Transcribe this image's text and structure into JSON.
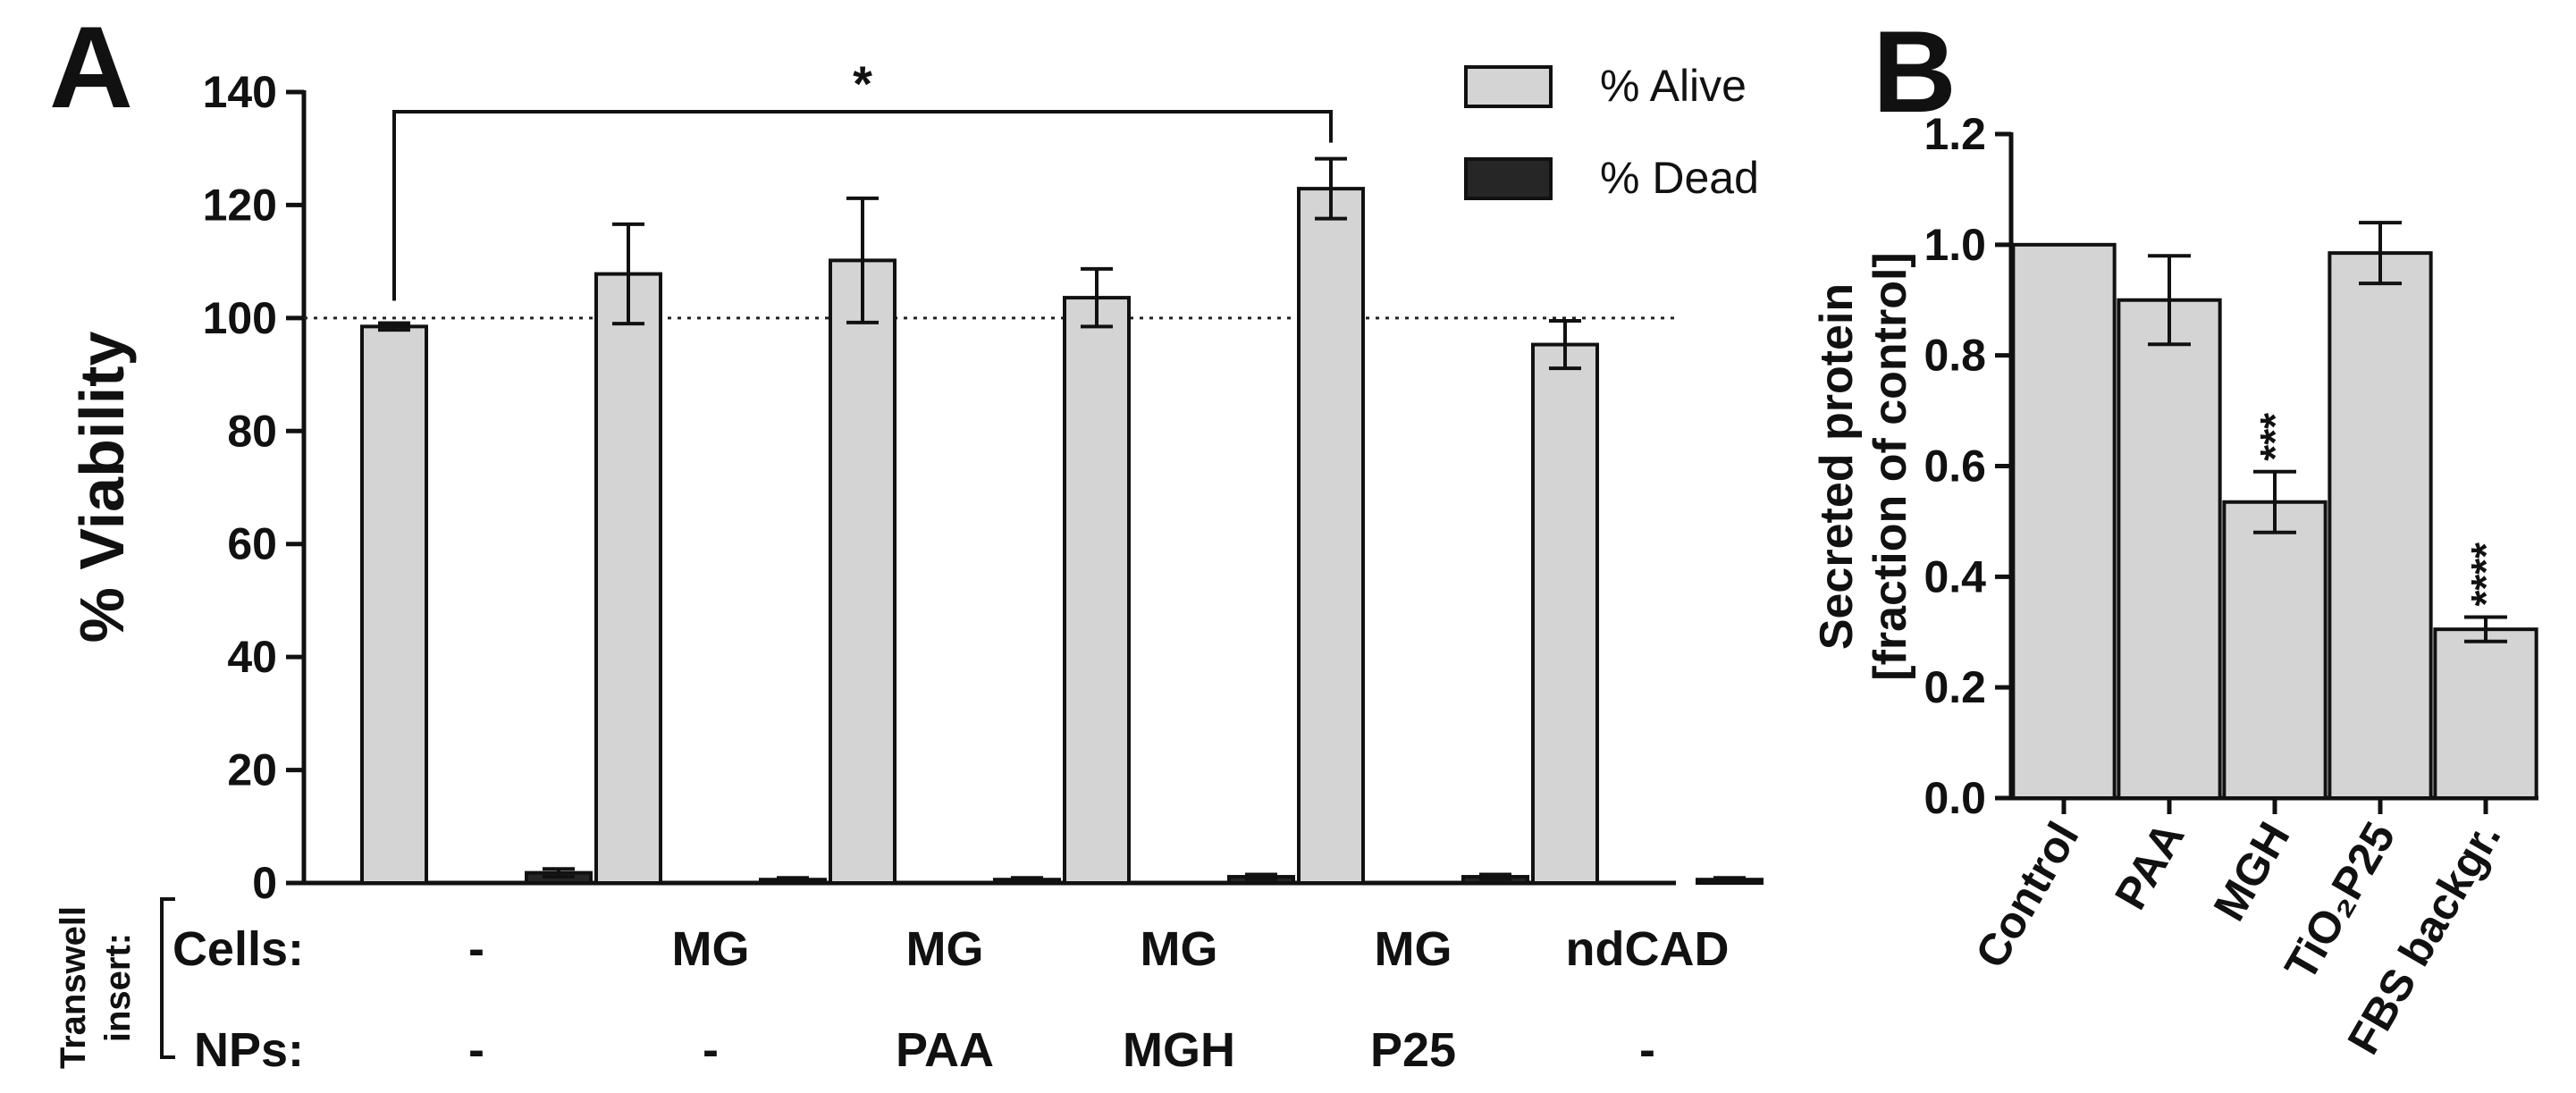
{
  "chart_data": [
    {
      "panel": "A",
      "type": "bar",
      "ylabel": "% Viability",
      "ylim": [
        0,
        140
      ],
      "yticks": [
        "0",
        "20",
        "40",
        "60",
        "80",
        "100",
        "120",
        "140"
      ],
      "reference_line": 100,
      "grid": false,
      "legend_position": "top-right",
      "series": [
        {
          "name": "% Alive",
          "color": "#d4d4d4",
          "values": [
            98.5,
            107.8,
            110.2,
            103.6,
            122.9,
            95.3
          ],
          "errors": [
            0.6,
            8.8,
            11.0,
            5.1,
            5.3,
            4.2
          ]
        },
        {
          "name": "% Dead",
          "color": "#262626",
          "values": [
            1.8,
            0.6,
            0.6,
            1.1,
            1.1,
            0.6
          ],
          "errors": [
            0.7,
            0.3,
            0.3,
            0.4,
            0.4,
            0.3
          ]
        }
      ],
      "table": {
        "side_label": [
          "Transwell",
          "insert:"
        ],
        "rows": [
          {
            "label": "Cells:",
            "values": [
              "-",
              "MG",
              "MG",
              "MG",
              "MG",
              "ndCAD"
            ]
          },
          {
            "label": "NPs:",
            "values": [
              "-",
              "-",
              "PAA",
              "MGH",
              "P25",
              "-"
            ]
          }
        ]
      },
      "significance": {
        "from_group": 0,
        "to_group": 4,
        "label": "*"
      }
    },
    {
      "panel": "B",
      "type": "bar",
      "ylabel": [
        "Secreted protein",
        "[fraction of control]"
      ],
      "ylim": [
        0,
        1.2
      ],
      "yticks": [
        "0.0",
        "0.2",
        "0.4",
        "0.6",
        "0.8",
        "1.0",
        "1.2"
      ],
      "grid": false,
      "categories": [
        "Control",
        "PAA",
        "MGH",
        "TiO₂P25",
        "FBS backgr."
      ],
      "values": [
        1.0,
        0.9,
        0.535,
        0.985,
        0.305
      ],
      "errors": [
        0.0,
        0.08,
        0.055,
        0.055,
        0.022
      ],
      "annotations": [
        "",
        "",
        "***",
        "",
        "****"
      ],
      "color": "#d4d4d4"
    }
  ]
}
